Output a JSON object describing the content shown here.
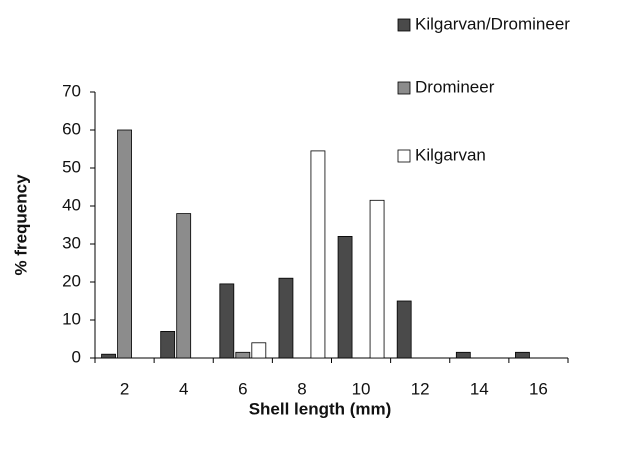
{
  "chart_data": {
    "type": "bar",
    "x_label": "Shell length (mm)",
    "y_label": "% frequency",
    "categories": [
      "2",
      "4",
      "6",
      "8",
      "10",
      "12",
      "14",
      "16"
    ],
    "series": [
      {
        "name": "Kilgarvan/Dromineer",
        "color": "#4a4a4a",
        "values": [
          1,
          7,
          19.5,
          21,
          32,
          15,
          1.5,
          1.5
        ]
      },
      {
        "name": "Dromineer",
        "color": "#8c8c8c",
        "values": [
          60,
          38,
          1.5,
          0,
          0,
          0,
          0,
          0
        ]
      },
      {
        "name": "Kilgarvan",
        "color": "#ffffff",
        "values": [
          0,
          0,
          4,
          54.5,
          41.5,
          0,
          0,
          0
        ]
      }
    ],
    "ylim": [
      0,
      70
    ],
    "yticks": [
      0,
      10,
      20,
      30,
      40,
      50,
      60,
      70
    ],
    "grid": false
  }
}
